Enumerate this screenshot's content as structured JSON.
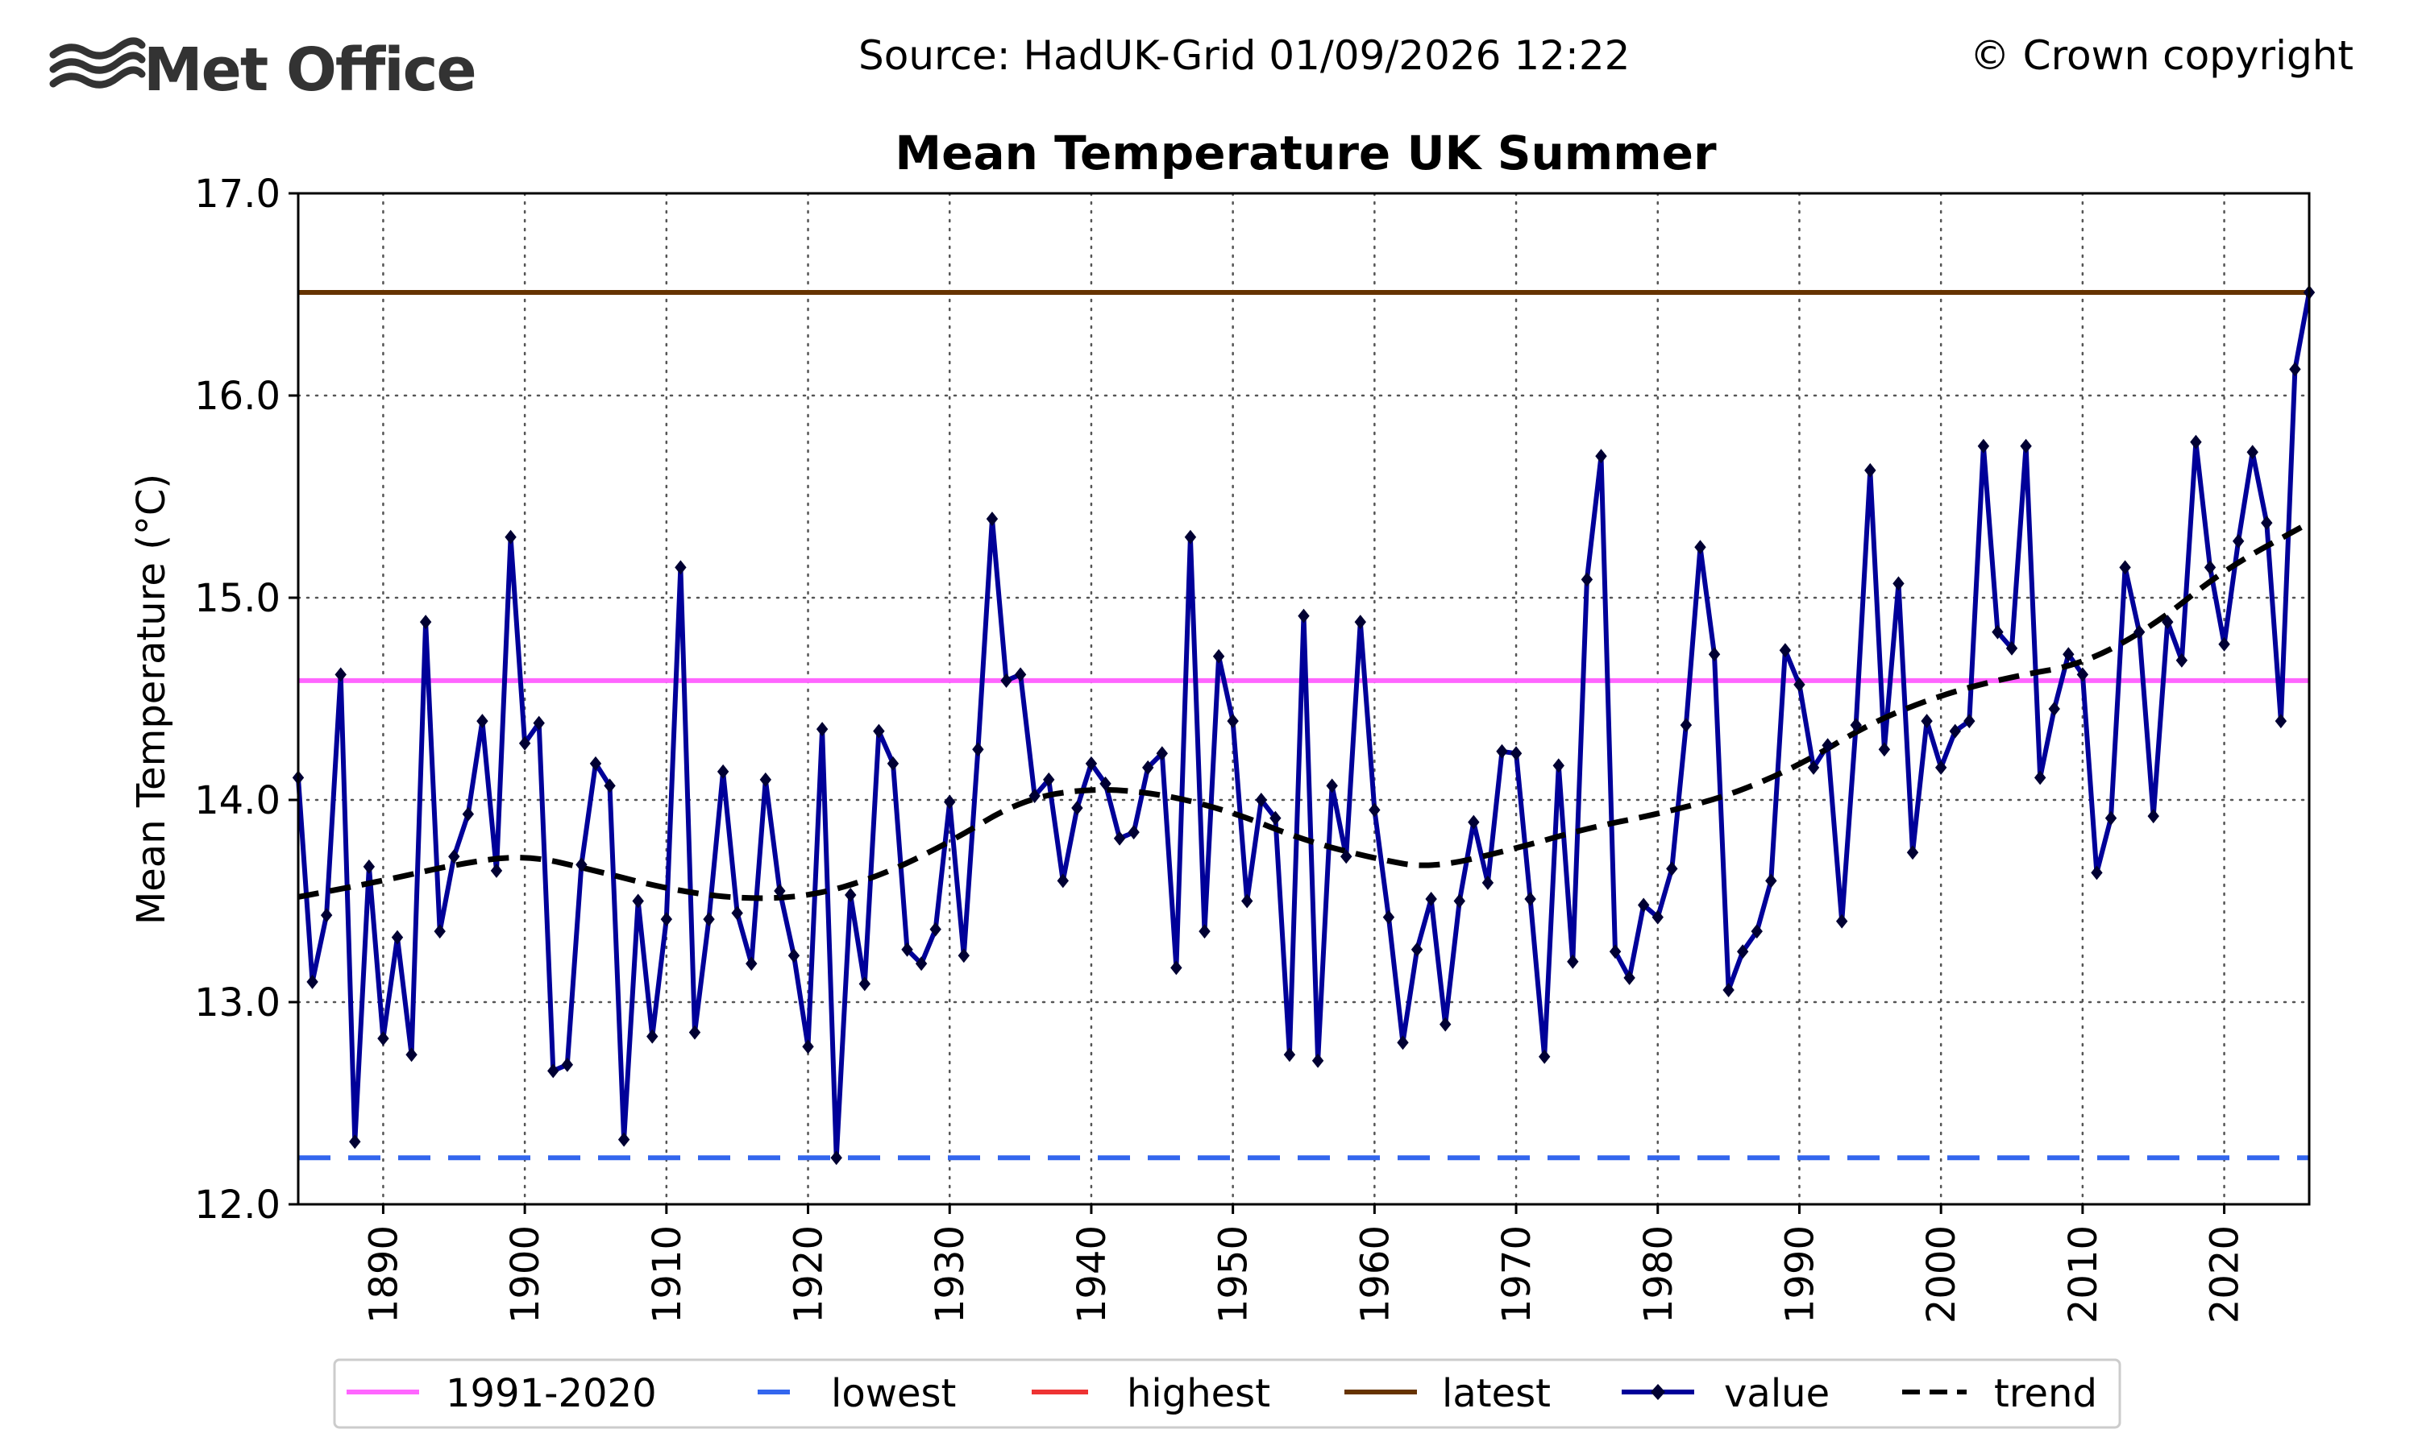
{
  "header": {
    "logo_text": "Met Office",
    "source": "Source: HadUK-Grid 01/09/2026 12:22",
    "copyright": "© Crown copyright"
  },
  "colors": {
    "baseline": "#ff66ff",
    "lowest": "#3366ee",
    "highest": "#ee3333",
    "latest": "#663300",
    "value": "#000099",
    "trend": "#000000"
  },
  "chart_data": {
    "type": "line",
    "title": "Mean Temperature UK Summer",
    "ylabel": "Mean Temperature (°C)",
    "xlabel": "",
    "xlim": [
      1884,
      2026
    ],
    "ylim": [
      12.0,
      17.0
    ],
    "yticks": [
      12.0,
      13.0,
      14.0,
      15.0,
      16.0,
      17.0
    ],
    "ytick_labels": [
      "12.0",
      "13.0",
      "14.0",
      "15.0",
      "16.0",
      "17.0"
    ],
    "xticks": [
      1890,
      1900,
      1910,
      1920,
      1930,
      1940,
      1950,
      1960,
      1970,
      1980,
      1990,
      2000,
      2010,
      2020
    ],
    "xtick_labels": [
      "1890",
      "1900",
      "1910",
      "1920",
      "1930",
      "1940",
      "1950",
      "1960",
      "1970",
      "1980",
      "1990",
      "2000",
      "2010",
      "2020"
    ],
    "grid": true,
    "legend_position": "bottom",
    "reference_lines": [
      {
        "name": "1991-2020",
        "value": 14.59,
        "style": "solid"
      },
      {
        "name": "lowest",
        "value": 12.23,
        "style": "dashed"
      },
      {
        "name": "highest",
        "value": 16.51,
        "style": "solid"
      },
      {
        "name": "latest",
        "value": 16.51,
        "style": "solid"
      }
    ],
    "legend": [
      "1991-2020",
      "lowest",
      "highest",
      "latest",
      "value",
      "trend"
    ],
    "series": [
      {
        "name": "value",
        "x": [
          1884,
          1885,
          1886,
          1887,
          1888,
          1889,
          1890,
          1891,
          1892,
          1893,
          1894,
          1895,
          1896,
          1897,
          1898,
          1899,
          1900,
          1901,
          1902,
          1903,
          1904,
          1905,
          1906,
          1907,
          1908,
          1909,
          1910,
          1911,
          1912,
          1913,
          1914,
          1915,
          1916,
          1917,
          1918,
          1919,
          1920,
          1921,
          1922,
          1923,
          1924,
          1925,
          1926,
          1927,
          1928,
          1929,
          1930,
          1931,
          1932,
          1933,
          1934,
          1935,
          1936,
          1937,
          1938,
          1939,
          1940,
          1941,
          1942,
          1943,
          1944,
          1945,
          1946,
          1947,
          1948,
          1949,
          1950,
          1951,
          1952,
          1953,
          1954,
          1955,
          1956,
          1957,
          1958,
          1959,
          1960,
          1961,
          1962,
          1963,
          1964,
          1965,
          1966,
          1967,
          1968,
          1969,
          1970,
          1971,
          1972,
          1973,
          1974,
          1975,
          1976,
          1977,
          1978,
          1979,
          1980,
          1981,
          1982,
          1983,
          1984,
          1985,
          1986,
          1987,
          1988,
          1989,
          1990,
          1991,
          1992,
          1993,
          1994,
          1995,
          1996,
          1997,
          1998,
          1999,
          2000,
          2001,
          2002,
          2003,
          2004,
          2005,
          2006,
          2007,
          2008,
          2009,
          2010,
          2011,
          2012,
          2013,
          2014,
          2015,
          2016,
          2017,
          2018,
          2019,
          2020,
          2021,
          2022,
          2023,
          2024,
          2025,
          2026
        ],
        "values": [
          14.11,
          13.1,
          13.43,
          14.62,
          12.31,
          13.67,
          12.82,
          13.32,
          12.74,
          14.88,
          13.35,
          13.72,
          13.93,
          14.39,
          13.65,
          15.3,
          14.28,
          14.38,
          12.66,
          12.69,
          13.68,
          14.18,
          14.07,
          12.32,
          13.5,
          12.83,
          13.41,
          15.15,
          12.85,
          13.41,
          14.14,
          13.44,
          13.19,
          14.1,
          13.55,
          13.23,
          12.78,
          14.35,
          12.23,
          13.53,
          13.09,
          14.34,
          14.18,
          13.26,
          13.19,
          13.36,
          13.99,
          13.23,
          14.25,
          15.39,
          14.59,
          14.62,
          14.02,
          14.1,
          13.6,
          13.96,
          14.18,
          14.08,
          13.81,
          13.84,
          14.16,
          14.23,
          13.17,
          15.3,
          13.35,
          14.71,
          14.39,
          13.5,
          14.0,
          13.91,
          12.74,
          14.91,
          12.71,
          14.07,
          13.72,
          14.88,
          13.95,
          13.42,
          12.8,
          13.26,
          13.51,
          12.89,
          13.5,
          13.89,
          13.59,
          14.24,
          14.23,
          13.51,
          12.73,
          14.17,
          13.2,
          15.09,
          15.7,
          13.25,
          13.12,
          13.48,
          13.42,
          13.66,
          14.37,
          15.25,
          14.72,
          13.06,
          13.25,
          13.35,
          13.6,
          14.74,
          14.57,
          14.16,
          14.27,
          13.4,
          14.37,
          15.63,
          14.25,
          15.07,
          13.74,
          14.39,
          14.16,
          14.34,
          14.39,
          15.75,
          14.83,
          14.75,
          15.75,
          14.11,
          14.45,
          14.72,
          14.62,
          13.64,
          13.91,
          15.15,
          14.83,
          13.92,
          14.88,
          14.69,
          15.77,
          15.15,
          14.77,
          15.28,
          15.72,
          15.37,
          14.39,
          16.13,
          16.51
        ]
      },
      {
        "name": "trend",
        "x": [
          1884,
          1890,
          1895,
          1900,
          1905,
          1910,
          1915,
          1920,
          1925,
          1930,
          1935,
          1940,
          1945,
          1950,
          1955,
          1960,
          1964,
          1970,
          1975,
          1980,
          1985,
          1990,
          1995,
          2000,
          2005,
          2010,
          2015,
          2020,
          2026
        ],
        "values": [
          13.52,
          13.6,
          13.68,
          13.73,
          13.65,
          13.56,
          13.51,
          13.52,
          13.62,
          13.79,
          14.0,
          14.06,
          14.03,
          13.94,
          13.8,
          13.71,
          13.66,
          13.76,
          13.86,
          13.93,
          14.02,
          14.17,
          14.38,
          14.52,
          14.61,
          14.67,
          14.86,
          15.14,
          15.37
        ]
      }
    ]
  }
}
